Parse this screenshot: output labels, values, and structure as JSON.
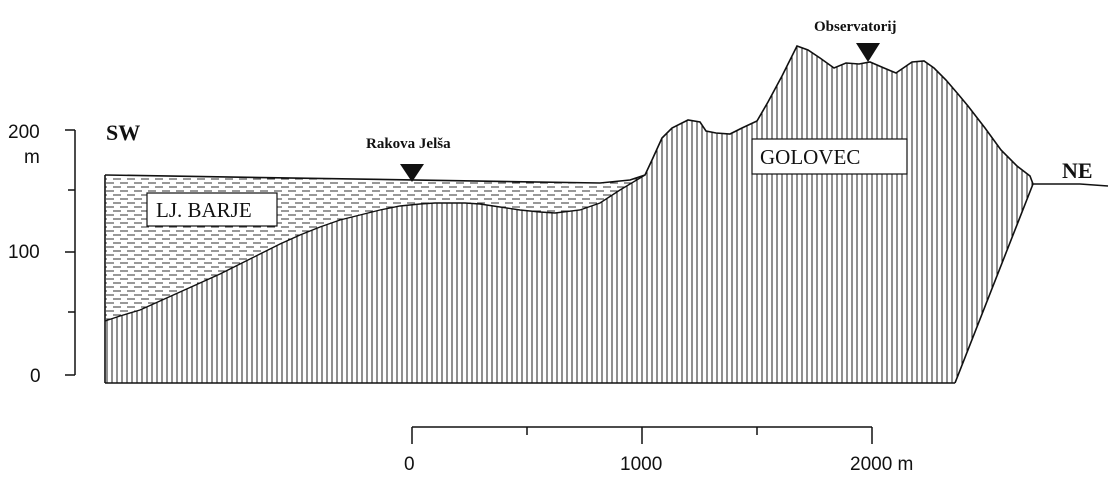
{
  "orientation": {
    "left": "SW",
    "right": "NE"
  },
  "vertical_axis": {
    "ticks": [
      "200",
      "100",
      "0"
    ],
    "unit": "m"
  },
  "horizontal_scale": {
    "ticks": [
      "0",
      "1000",
      "2000 m"
    ]
  },
  "places": {
    "rakova": "Rakova Jelša",
    "observatorij": "Observatorij"
  },
  "units": {
    "barje": "LJ. BARJE",
    "golovec": "GOLOVEC"
  },
  "colors": {
    "ink": "#111111",
    "background": "#ffffff"
  }
}
